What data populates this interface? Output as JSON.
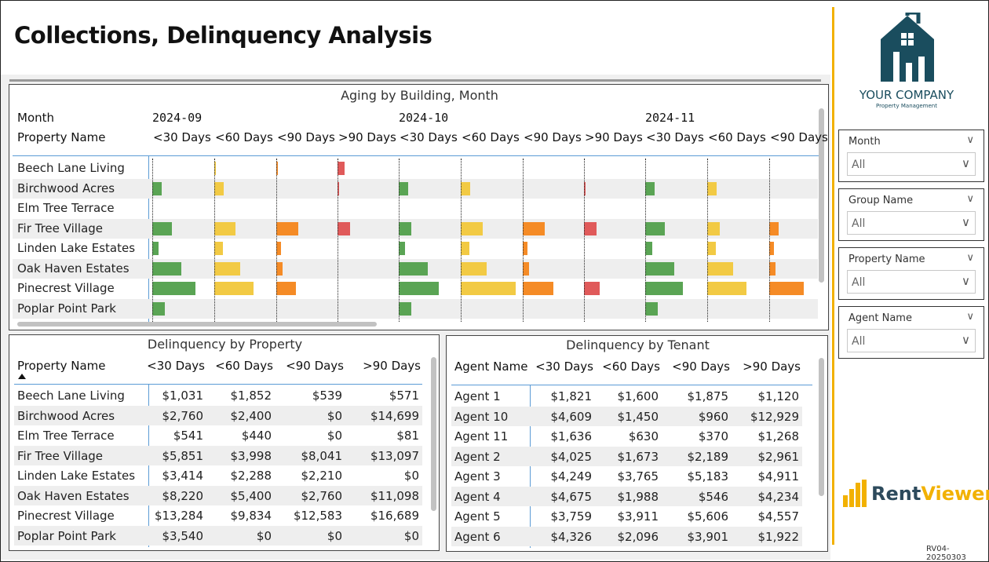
{
  "title": "Collections, Delinquency Analysis",
  "colors": {
    "green": "#5aa454",
    "yellow": "#f2ca44",
    "orange": "#f58b26",
    "red": "#e05a5a",
    "gold": "#f2b100",
    "logo_teal": "#1a4d5e"
  },
  "logo": {
    "company": "YOUR COMPANY",
    "tagline": "Property Management"
  },
  "brand": {
    "part1": "Rent",
    "part2": "Viewer"
  },
  "version": "RV04-20250303",
  "slicers": [
    {
      "label": "Month",
      "value": "All"
    },
    {
      "label": "Group Name",
      "value": "All"
    },
    {
      "label": "Property Name",
      "value": "All"
    },
    {
      "label": "Agent Name",
      "value": "All"
    }
  ],
  "aging": {
    "title": "Aging by Building, Month",
    "month_label": "Month",
    "property_label": "Property Name",
    "months": [
      "2024-09",
      "2024-10",
      "2024-11"
    ],
    "buckets": [
      "<30 Days",
      "<60 Days",
      "<90 Days",
      ">90 Days",
      "<30 Days",
      "<60 Days",
      "<90 Days",
      ">90 Days",
      "<30 Days",
      "<60 Days",
      "<90 Days"
    ],
    "rows": [
      {
        "name": "Beech Lane Living",
        "values": [
          0.0,
          0.02,
          0.03,
          0.12,
          0.0,
          0.0,
          0.0,
          0.0,
          0.0,
          0.0,
          0.0
        ]
      },
      {
        "name": "Birchwood Acres",
        "values": [
          0.16,
          0.16,
          0.0,
          0.02,
          0.16,
          0.16,
          0.0,
          0.02,
          0.16,
          0.16,
          0.0
        ]
      },
      {
        "name": "Elm Tree Terrace",
        "values": [
          0.0,
          0.0,
          0.0,
          0.0,
          0.0,
          0.0,
          0.0,
          0.0,
          0.0,
          0.0,
          0.0
        ]
      },
      {
        "name": "Fir Tree Village",
        "values": [
          0.32,
          0.34,
          0.36,
          0.2,
          0.2,
          0.36,
          0.36,
          0.2,
          0.32,
          0.2,
          0.16
        ]
      },
      {
        "name": "Linden Lake Estates",
        "values": [
          0.1,
          0.14,
          0.08,
          0.0,
          0.1,
          0.14,
          0.08,
          0.0,
          0.12,
          0.14,
          0.08
        ]
      },
      {
        "name": "Oak Haven Estates",
        "values": [
          0.48,
          0.42,
          0.1,
          0.0,
          0.48,
          0.42,
          0.1,
          0.0,
          0.48,
          0.42,
          0.1
        ]
      },
      {
        "name": "Pinecrest Village",
        "values": [
          0.7,
          0.64,
          0.32,
          0.0,
          0.66,
          0.9,
          0.5,
          0.26,
          0.62,
          0.64,
          0.56
        ]
      },
      {
        "name": "Poplar Point Park",
        "values": [
          0.2,
          0.0,
          0.0,
          0.0,
          0.2,
          0.0,
          0.0,
          0.0,
          0.2,
          0.0,
          0.0
        ]
      }
    ]
  },
  "del_property": {
    "title": "Delinquency by Property",
    "headers": [
      "Property Name",
      "<30 Days",
      "<60 Days",
      "<90 Days",
      ">90 Days"
    ],
    "rows": [
      [
        "Beech Lane Living",
        "$1,031",
        "$1,852",
        "$539",
        "$571"
      ],
      [
        "Birchwood Acres",
        "$2,760",
        "$2,400",
        "$0",
        "$14,699"
      ],
      [
        "Elm Tree Terrace",
        "$541",
        "$440",
        "$0",
        "$81"
      ],
      [
        "Fir Tree Village",
        "$5,851",
        "$3,998",
        "$8,041",
        "$13,097"
      ],
      [
        "Linden Lake Estates",
        "$3,414",
        "$2,288",
        "$2,210",
        "$0"
      ],
      [
        "Oak Haven Estates",
        "$8,220",
        "$5,400",
        "$2,760",
        "$11,098"
      ],
      [
        "Pinecrest Village",
        "$13,284",
        "$9,834",
        "$12,583",
        "$16,689"
      ],
      [
        "Poplar Point Park",
        "$3,540",
        "$0",
        "$0",
        "$0"
      ]
    ]
  },
  "del_tenant": {
    "title": "Delinquency by Tenant",
    "headers": [
      "Agent Name",
      "<30 Days",
      "<60 Days",
      "<90 Days",
      ">90 Days"
    ],
    "rows": [
      [
        "Agent 1",
        "$1,821",
        "$1,600",
        "$1,875",
        "$1,120"
      ],
      [
        "Agent 10",
        "$4,609",
        "$1,450",
        "$960",
        "$12,929"
      ],
      [
        "Agent 11",
        "$1,636",
        "$630",
        "$370",
        "$1,268"
      ],
      [
        "Agent 2",
        "$4,025",
        "$1,673",
        "$2,189",
        "$2,961"
      ],
      [
        "Agent 3",
        "$4,249",
        "$3,765",
        "$5,183",
        "$4,911"
      ],
      [
        "Agent 4",
        "$4,675",
        "$1,988",
        "$546",
        "$4,234"
      ],
      [
        "Agent 5",
        "$3,759",
        "$3,911",
        "$5,606",
        "$4,557"
      ],
      [
        "Agent 6",
        "$4,326",
        "$2,096",
        "$3,901",
        "$1,922"
      ]
    ]
  }
}
